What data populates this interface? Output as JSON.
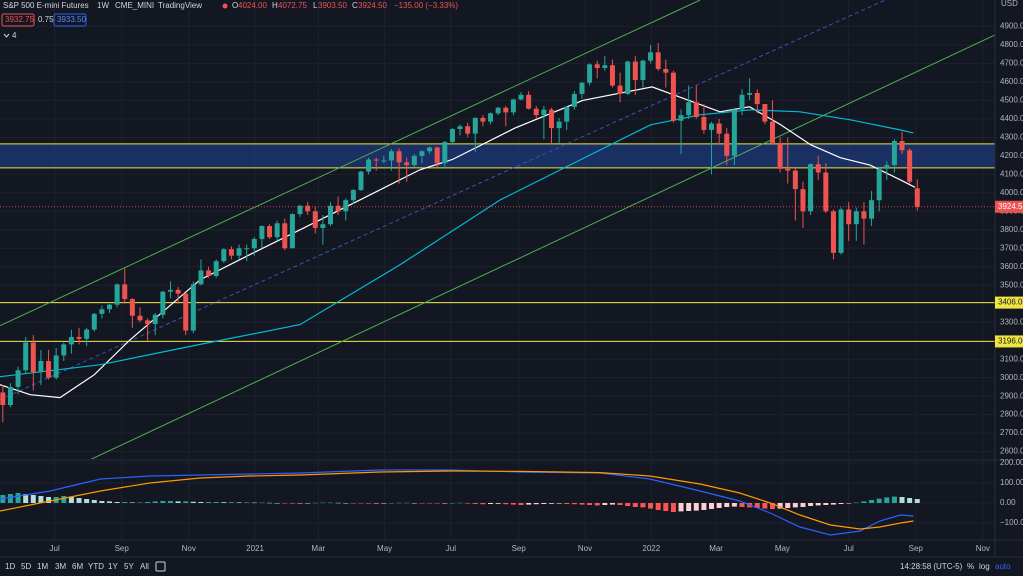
{
  "header": {
    "interval": "1W",
    "exchange": "CME_MINI",
    "source": "TradingView",
    "ohlc": [
      {
        "key": "O",
        "value": "4024.00"
      },
      {
        "key": "H",
        "value": "4072.75"
      },
      {
        "key": "L",
        "value": "3903.50"
      },
      {
        "key": "C",
        "value": "3924.50"
      }
    ],
    "change": "−135.00 (−3.33%)",
    "bid": "3932.75",
    "spread": "0.75",
    "ask": "3933.50",
    "indicators_count": "4"
  },
  "toolbar": {
    "ranges": [
      "1D",
      "5D",
      "1M",
      "3M",
      "6M",
      "YTD",
      "1Y",
      "5Y",
      "All"
    ],
    "clock": "14:28:58 (UTC-5)",
    "percent": "%",
    "log": "log",
    "auto": "auto"
  },
  "chart_data": {
    "type": "candlestick",
    "title": "S&P 500 E-mini Futures",
    "currency": "USD",
    "up_color": "#26a69a",
    "down_color": "#ef5350",
    "grid": true,
    "xlim": [
      -0.37,
      130.2
    ],
    "xticks": [
      {
        "value": 6.8,
        "label": "Jul"
      },
      {
        "value": 15.6,
        "label": "Sep"
      },
      {
        "value": 24.4,
        "label": "Nov"
      },
      {
        "value": 33.1,
        "label": "2021"
      },
      {
        "value": 41.4,
        "label": "Mar"
      },
      {
        "value": 50.1,
        "label": "May"
      },
      {
        "value": 58.8,
        "label": "Jul"
      },
      {
        "value": 67.7,
        "label": "Sep"
      },
      {
        "value": 76.4,
        "label": "Nov"
      },
      {
        "value": 85.1,
        "label": "2022"
      },
      {
        "value": 93.6,
        "label": "Mar"
      },
      {
        "value": 102.3,
        "label": "May"
      },
      {
        "value": 111,
        "label": "Jul"
      },
      {
        "value": 119.8,
        "label": "Sep"
      },
      {
        "value": 128.6,
        "label": "Nov"
      }
    ],
    "ylim": [
      2560,
      5043
    ],
    "yticks": [
      {
        "value": 2600,
        "label": "2600.00"
      },
      {
        "value": 2700,
        "label": "2700.00"
      },
      {
        "value": 2800,
        "label": "2800.00"
      },
      {
        "value": 2900,
        "label": "2900.00"
      },
      {
        "value": 3000,
        "label": "3000.00"
      },
      {
        "value": 3100,
        "label": "3100.00"
      },
      {
        "value": 3200,
        "label": "3200.00"
      },
      {
        "value": 3300,
        "label": "3300.00"
      },
      {
        "value": 3400,
        "label": "3400.00"
      },
      {
        "value": 3500,
        "label": "3500.00"
      },
      {
        "value": 3600,
        "label": "3600.00"
      },
      {
        "value": 3700,
        "label": "3700.00"
      },
      {
        "value": 3800,
        "label": "3800.00"
      },
      {
        "value": 3900,
        "label": "3900.00"
      },
      {
        "value": 4000,
        "label": "4000.00"
      },
      {
        "value": 4100,
        "label": "4100.00"
      },
      {
        "value": 4200,
        "label": "4200.00"
      },
      {
        "value": 4300,
        "label": "4300.00"
      },
      {
        "value": 4400,
        "label": "4400.00"
      },
      {
        "value": 4500,
        "label": "4500.00"
      },
      {
        "value": 4600,
        "label": "4600.00"
      },
      {
        "value": 4700,
        "label": "4700.00"
      },
      {
        "value": 4800,
        "label": "4800.00"
      },
      {
        "value": 4900,
        "label": "4900.00"
      }
    ],
    "open": [
      2920,
      2852,
      2950,
      3040,
      3190,
      3030,
      3090,
      3000,
      3120,
      3180,
      3220,
      3210,
      3260,
      3345,
      3370,
      3395,
      3505,
      3425,
      3335,
      3310,
      3290,
      3340,
      3465,
      3475,
      3455,
      3255,
      3505,
      3580,
      3550,
      3630,
      3695,
      3660,
      3700,
      3700,
      3750,
      3820,
      3760,
      3835,
      3700,
      3885,
      3930,
      3900,
      3810,
      3830,
      3930,
      3900,
      3960,
      4015,
      4115,
      4180,
      4175,
      4175,
      4225,
      4165,
      4150,
      4200,
      4225,
      4245,
      4160,
      4275,
      4345,
      4360,
      4320,
      4405,
      4385,
      4430,
      4460,
      4435,
      4505,
      4530,
      4455,
      4420,
      4450,
      4350,
      4385,
      4465,
      4535,
      4595,
      4695,
      4675,
      4690,
      4580,
      4535,
      4710,
      4610,
      4715,
      4760,
      4670,
      4650,
      4390,
      4420,
      4490,
      4410,
      4340,
      4375,
      4320,
      4200,
      4450,
      4530,
      4540,
      4480,
      4385,
      4270,
      4130,
      4120,
      4020,
      3900,
      4155,
      4110,
      3900,
      3675,
      3910,
      3830,
      3900,
      3860,
      3960,
      4130,
      4150,
      4280,
      4230,
      4024
    ],
    "high": [
      2960,
      2970,
      3060,
      3220,
      3230,
      3150,
      3150,
      3160,
      3190,
      3260,
      3270,
      3270,
      3350,
      3390,
      3400,
      3510,
      3590,
      3430,
      3380,
      3320,
      3350,
      3470,
      3520,
      3490,
      3460,
      3520,
      3640,
      3600,
      3640,
      3700,
      3710,
      3720,
      3720,
      3760,
      3825,
      3830,
      3850,
      3860,
      3890,
      3935,
      3950,
      3925,
      3880,
      3950,
      3980,
      3970,
      4020,
      4120,
      4190,
      4190,
      4200,
      4235,
      4240,
      4190,
      4210,
      4230,
      4250,
      4250,
      4280,
      4350,
      4370,
      4380,
      4410,
      4420,
      4435,
      4465,
      4470,
      4510,
      4545,
      4550,
      4470,
      4470,
      4460,
      4405,
      4470,
      4550,
      4600,
      4700,
      4715,
      4740,
      4720,
      4650,
      4715,
      4740,
      4720,
      4800,
      4810,
      4720,
      4660,
      4450,
      4580,
      4580,
      4480,
      4385,
      4400,
      4350,
      4460,
      4560,
      4620,
      4560,
      4480,
      4500,
      4300,
      4300,
      4140,
      4060,
      4160,
      4200,
      4160,
      3910,
      3920,
      3950,
      3920,
      3950,
      4010,
      4140,
      4170,
      4290,
      4330,
      4240,
      4072.75
    ],
    "low": [
      2760,
      2840,
      2910,
      3020,
      2930,
      2960,
      2990,
      2990,
      3090,
      3130,
      3180,
      3170,
      3250,
      3320,
      3350,
      3380,
      3400,
      3270,
      3300,
      3200,
      3230,
      3320,
      3430,
      3400,
      3230,
      3240,
      3500,
      3540,
      3540,
      3620,
      3640,
      3640,
      3630,
      3660,
      3700,
      3750,
      3740,
      3690,
      3700,
      3870,
      3880,
      3780,
      3720,
      3820,
      3880,
      3850,
      3940,
      4010,
      4100,
      4120,
      4160,
      4120,
      4050,
      4060,
      4140,
      4160,
      4210,
      4140,
      4130,
      4260,
      4310,
      4300,
      4220,
      4360,
      4370,
      4420,
      4360,
      4420,
      4500,
      4450,
      4400,
      4290,
      4270,
      4270,
      4340,
      4450,
      4510,
      4580,
      4620,
      4660,
      4570,
      4490,
      4530,
      4530,
      4570,
      4700,
      4660,
      4570,
      4380,
      4210,
      4400,
      4400,
      4320,
      4100,
      4260,
      4150,
      4150,
      4420,
      4500,
      4430,
      4370,
      4260,
      4110,
      4050,
      3850,
      3810,
      3880,
      4070,
      3890,
      3640,
      3665,
      3740,
      3740,
      3720,
      3820,
      3900,
      4070,
      4110,
      4210,
      4050,
      3903.5
    ],
    "close": [
      2852,
      2950,
      3040,
      3190,
      3030,
      3090,
      3000,
      3120,
      3180,
      3220,
      3210,
      3260,
      3345,
      3370,
      3395,
      3505,
      3425,
      3335,
      3310,
      3290,
      3340,
      3465,
      3475,
      3455,
      3255,
      3505,
      3580,
      3550,
      3630,
      3695,
      3660,
      3700,
      3700,
      3750,
      3820,
      3760,
      3835,
      3700,
      3885,
      3930,
      3900,
      3810,
      3830,
      3930,
      3900,
      3960,
      4015,
      4115,
      4180,
      4175,
      4175,
      4225,
      4165,
      4150,
      4200,
      4225,
      4245,
      4160,
      4275,
      4345,
      4360,
      4320,
      4405,
      4385,
      4430,
      4460,
      4435,
      4505,
      4530,
      4455,
      4420,
      4450,
      4350,
      4385,
      4465,
      4535,
      4595,
      4695,
      4675,
      4690,
      4580,
      4535,
      4710,
      4610,
      4715,
      4760,
      4670,
      4650,
      4390,
      4420,
      4490,
      4410,
      4340,
      4375,
      4320,
      4200,
      4450,
      4530,
      4540,
      4480,
      4385,
      4270,
      4130,
      4120,
      4020,
      3900,
      4155,
      4110,
      3900,
      3675,
      3910,
      3830,
      3900,
      3860,
      3960,
      4130,
      4150,
      4280,
      4230,
      4060,
      3924.5
    ],
    "last_price": {
      "value": 3924.5,
      "label": "3924.50",
      "color": "#ef5350"
    },
    "zone": {
      "from": 4135,
      "to": 4265,
      "color": "#1f3a78"
    },
    "levels": [
      {
        "value": 4265,
        "color": "#f0e442"
      },
      {
        "value": 4135,
        "color": "#f0e442"
      },
      {
        "value": 3406,
        "label": "3406.00",
        "color": "#f0e442"
      },
      {
        "value": 3196,
        "label": "3196.00",
        "color": "#f0e442"
      }
    ],
    "trendlines": [
      {
        "x": [
          -0.37,
          91.5
        ],
        "y": [
          3281,
          5043
        ],
        "color": "#4caf50",
        "dashed": false
      },
      {
        "x": [
          -0.37,
          115.8
        ],
        "y": [
          2881,
          5043
        ],
        "color": "#3f51b5",
        "dashed": true
      },
      {
        "x": [
          11.5,
          130.2
        ],
        "y": [
          2557,
          4854
        ],
        "color": "#4caf50",
        "dashed": false
      }
    ],
    "moving_averages": [
      {
        "color": "#ffffff",
        "x": [
          -0.37,
          3.6,
          7.5,
          12,
          16.7,
          25.9,
          32.4,
          39,
          46.9,
          54.7,
          59,
          67.2,
          76.1,
          85.2,
          94.1,
          98,
          102,
          106,
          109.9,
          113.8,
          117.8,
          119.7
        ],
        "values": [
          2962,
          2908,
          2892,
          3016,
          3205,
          3530,
          3665,
          3800,
          3962,
          4124,
          4180,
          4350,
          4500,
          4573,
          4438,
          4465,
          4370,
          4260,
          4190,
          4150,
          4070,
          4030
        ]
      },
      {
        "color": "#00bcd4",
        "x": [
          -0.37,
          12.8,
          25.9,
          39,
          52.1,
          65.3,
          78.4,
          85,
          91.5,
          98.1,
          104.6,
          111.2,
          117.8,
          119.5
        ],
        "values": [
          3005,
          3070,
          3180,
          3287,
          3610,
          3962,
          4232,
          4368,
          4422,
          4449,
          4438,
          4395,
          4340,
          4324
        ]
      }
    ],
    "macd": {
      "ylim": [
        -185,
        215
      ],
      "yticks": [
        {
          "value": 200,
          "label": "200.00"
        },
        {
          "value": 100,
          "label": "100.00"
        },
        {
          "value": 0,
          "label": "0.00"
        },
        {
          "value": -100,
          "label": "−100.00"
        }
      ],
      "histogram": [
        40,
        45,
        50,
        45,
        40,
        35,
        30,
        30,
        35,
        30,
        25,
        20,
        15,
        10,
        8,
        5,
        5,
        3,
        3,
        5,
        8,
        10,
        10,
        8,
        8,
        6,
        5,
        5,
        5,
        4,
        4,
        3,
        3,
        2,
        2,
        1,
        0,
        -2,
        -3,
        -2,
        -1,
        1,
        2,
        2,
        1,
        0,
        -1,
        -2,
        -3,
        -2,
        -1,
        0,
        1,
        1,
        0,
        -1,
        -2,
        -2,
        -1,
        0,
        1,
        -3,
        -5,
        -6,
        -5,
        -4,
        -6,
        -8,
        -10,
        -8,
        -6,
        -5,
        -4,
        -3,
        -5,
        -6,
        -8,
        -10,
        -12,
        -10,
        -8,
        -10,
        -15,
        -20,
        -22,
        -28,
        -35,
        -40,
        -45,
        -42,
        -40,
        -38,
        -35,
        -30,
        -25,
        -20,
        -18,
        -20,
        -22,
        -25,
        -28,
        -30,
        -28,
        -25,
        -22,
        -20,
        -15,
        -12,
        -10,
        -8,
        -5,
        -2,
        2,
        8,
        15,
        22,
        28,
        32,
        30,
        25,
        20
      ],
      "histogram_colors": {
        "up_grow": "#26a69a",
        "up_fall": "#b2dfdb",
        "down_grow": "#ff5252",
        "down_fall": "#ffcdd2"
      },
      "lines": [
        {
          "color": "#2962ff",
          "x": [
            -0.37,
            6.2,
            12.8,
            19.3,
            25.9,
            32.4,
            39,
            49.5,
            58.7,
            67.9,
            78.4,
            84.9,
            91.5,
            96.7,
            100.7,
            104.6,
            108.6,
            112.5,
            115.1,
            117.8,
            119.5
          ],
          "values": [
            20,
            60,
            120,
            135,
            140,
            145,
            150,
            165,
            165,
            155,
            150,
            120,
            60,
            10,
            -50,
            -120,
            -160,
            -140,
            -90,
            -60,
            -65
          ]
        },
        {
          "color": "#ff9800",
          "x": [
            -0.37,
            6.2,
            12.8,
            19.3,
            25.9,
            32.4,
            39,
            49.5,
            58.7,
            67.9,
            78.4,
            84.9,
            91.5,
            96.7,
            100.7,
            104.6,
            108.6,
            112.5,
            115.1,
            117.8,
            119.5
          ],
          "values": [
            -40,
            10,
            60,
            100,
            125,
            135,
            140,
            155,
            160,
            158,
            152,
            135,
            95,
            50,
            0,
            -60,
            -110,
            -130,
            -120,
            -100,
            -90
          ]
        }
      ]
    }
  }
}
